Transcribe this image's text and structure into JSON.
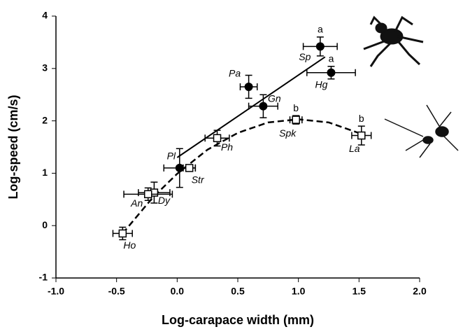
{
  "chart_data": {
    "type": "scatter",
    "x_label": "Log-carapace width (mm)",
    "y_label": "Log-speed (cm/s)",
    "xlim": [
      -1,
      2
    ],
    "ylim": [
      -1,
      4
    ],
    "xticks": [
      {
        "value": -1,
        "label": "-1.0"
      },
      -0.5,
      {
        "value": 0,
        "label": "0.0"
      },
      0.5,
      {
        "value": 1,
        "label": "1.0"
      },
      1.5,
      {
        "value": 2,
        "label": "2.0"
      }
    ],
    "yticks": [
      -1,
      0,
      1,
      2,
      3,
      4
    ],
    "series": [
      {
        "marker": "circle",
        "color": "#000000",
        "labels": [
          "Sp",
          "Hg",
          "Pa",
          "Gn",
          "Pl"
        ],
        "groups": [
          "a",
          "a",
          null,
          null,
          null
        ],
        "x": [
          1.18,
          1.27,
          0.59,
          0.71,
          0.02
        ],
        "values": [
          3.42,
          2.92,
          2.65,
          2.28,
          1.1
        ],
        "xerr": [
          0.14,
          0.2,
          0.07,
          0.12,
          0.13
        ],
        "yerr": [
          0.18,
          0.12,
          0.22,
          0.22,
          0.37
        ]
      },
      {
        "marker": "square",
        "color": "#000000",
        "labels": [
          "Spk",
          "La",
          "Ph",
          "Str",
          "Dy",
          "An",
          "Ho"
        ],
        "groups": [
          "b",
          "b",
          null,
          null,
          null,
          null,
          null
        ],
        "x": [
          0.98,
          1.52,
          0.33,
          0.1,
          -0.19,
          -0.24,
          -0.45
        ],
        "values": [
          2.02,
          1.72,
          1.67,
          1.1,
          0.63,
          0.6,
          -0.15
        ],
        "xerr": [
          0.05,
          0.08,
          0.1,
          0.05,
          0.13,
          0.2,
          0.08
        ],
        "yerr": [
          0.08,
          0.18,
          0.15,
          0.05,
          0.2,
          0.12,
          0.12
        ]
      }
    ],
    "fits": [
      {
        "style": "solid",
        "x": [
          0,
          1.22
        ],
        "values": [
          1.3,
          3.22
        ]
      },
      {
        "style": "dashed",
        "x": [
          -0.45,
          -0.2,
          0,
          0.25,
          0.5,
          0.75,
          1,
          1.25,
          1.52
        ],
        "values": [
          -0.15,
          0.54,
          0.99,
          1.45,
          1.77,
          1.97,
          2.03,
          1.97,
          1.75
        ]
      }
    ]
  }
}
